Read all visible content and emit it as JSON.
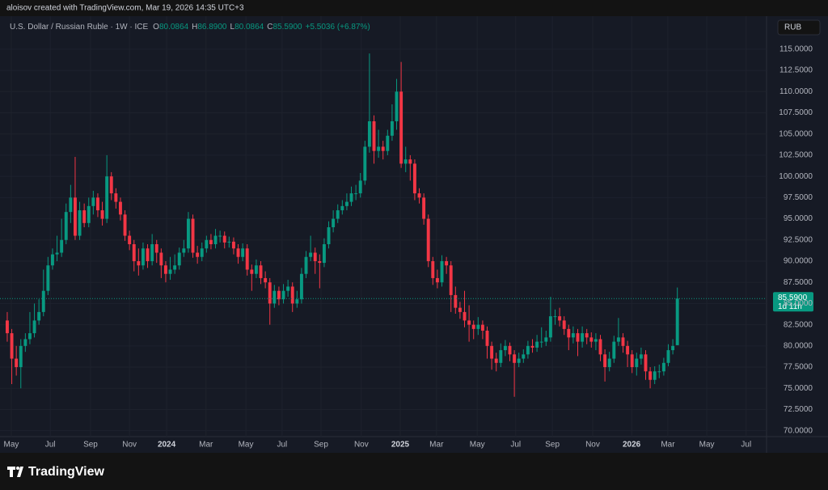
{
  "attribution": "aloisov created with TradingView.com, Mar 19, 2026 14:35 UTC+3",
  "brand": "TradingView",
  "currency_button": "RUB",
  "chart_data": {
    "type": "candlestick",
    "symbol": "U.S. Dollar / Russian Ruble · 1W · ICE",
    "ohlc_labels": [
      "O",
      "H",
      "L",
      "C"
    ],
    "ohlc_values": [
      "80.0864",
      "86.8900",
      "80.0864",
      "85.5900"
    ],
    "change": "+5.5036 (+6.87%)",
    "last_price_label": "85.5900",
    "countdown": "1d 11h",
    "up_color": "#089981",
    "down_color": "#f23645",
    "grid": true,
    "xlim": [
      -1.6,
      167.7
    ],
    "xticks": [
      {
        "value": 0.9,
        "label": "May"
      },
      {
        "value": 9.5,
        "label": "Jul"
      },
      {
        "value": 18.4,
        "label": "Sep"
      },
      {
        "value": 27,
        "label": "Nov"
      },
      {
        "value": 35.2,
        "label": "2024"
      },
      {
        "value": 43.9,
        "label": "Mar"
      },
      {
        "value": 52.7,
        "label": "May"
      },
      {
        "value": 60.7,
        "label": "Jul"
      },
      {
        "value": 69.3,
        "label": "Sep"
      },
      {
        "value": 78.2,
        "label": "Nov"
      },
      {
        "value": 86.8,
        "label": "2025"
      },
      {
        "value": 94.8,
        "label": "Mar"
      },
      {
        "value": 103.8,
        "label": "May"
      },
      {
        "value": 112.3,
        "label": "Jul"
      },
      {
        "value": 120.4,
        "label": "Sep"
      },
      {
        "value": 129.3,
        "label": "Nov"
      },
      {
        "value": 137.9,
        "label": "2026"
      },
      {
        "value": 145.9,
        "label": "Mar"
      },
      {
        "value": 154.5,
        "label": "May"
      },
      {
        "value": 163.2,
        "label": "Jul"
      }
    ],
    "ylim": [
      69.3,
      118.9
    ],
    "yticks": [
      {
        "value": 70,
        "label": "70.0000"
      },
      {
        "value": 72.5,
        "label": "72.5000"
      },
      {
        "value": 75,
        "label": "75.0000"
      },
      {
        "value": 77.5,
        "label": "77.5000"
      },
      {
        "value": 80,
        "label": "80.0000"
      },
      {
        "value": 82.5,
        "label": "82.5000"
      },
      {
        "value": 85,
        "label": "85.0000"
      },
      {
        "value": 87.5,
        "label": "87.5000"
      },
      {
        "value": 90,
        "label": "90.0000"
      },
      {
        "value": 92.5,
        "label": "92.5000"
      },
      {
        "value": 95,
        "label": "95.0000"
      },
      {
        "value": 97.5,
        "label": "97.5000"
      },
      {
        "value": 100,
        "label": "100.0000"
      },
      {
        "value": 102.5,
        "label": "102.5000"
      },
      {
        "value": 105,
        "label": "105.0000"
      },
      {
        "value": 107.5,
        "label": "107.5000"
      },
      {
        "value": 110,
        "label": "110.0000"
      },
      {
        "value": 112.5,
        "label": "112.5000"
      },
      {
        "value": 115,
        "label": "115.0000"
      }
    ],
    "open": [
      83,
      81.5,
      78.5,
      77.5,
      80,
      80.8,
      81.5,
      83,
      84,
      86.5,
      89.5,
      90.8,
      91,
      92.5,
      95.8,
      97.5,
      93,
      96,
      94.5,
      96.5,
      97.5,
      96,
      95,
      100,
      98,
      97,
      95.5,
      93,
      92,
      90,
      89.5,
      91.5,
      90,
      92,
      91,
      89.5,
      88.5,
      89,
      89.5,
      91,
      91.5,
      95,
      91,
      90.5,
      91.5,
      92.5,
      92,
      93,
      93,
      92.2,
      92.3,
      91.5,
      90.5,
      91.5,
      89,
      88.5,
      89.5,
      88,
      87.5,
      85,
      86.5,
      85.5,
      86.5,
      87,
      85,
      85.5,
      88.5,
      90.5,
      91,
      90,
      89.8,
      92,
      94,
      95,
      96,
      96.5,
      97,
      98,
      98,
      99.5,
      103.5,
      106.5,
      103,
      103.5,
      103,
      104.8,
      106.5,
      110,
      101.5,
      102,
      101.5,
      98,
      97.5,
      95,
      90,
      88,
      87.5,
      90,
      89.5,
      86,
      84.5,
      84,
      83,
      82.5,
      82,
      82.5,
      81.8,
      80,
      78.5,
      78,
      79.5,
      80,
      79,
      78,
      78.5,
      79,
      80,
      79.8,
      80.5,
      80.5,
      81,
      83.5,
      83.5,
      83,
      82,
      81,
      81.5,
      80.5,
      81.5,
      81,
      80.5,
      80.8,
      79,
      77.5,
      78.5,
      80.5,
      81,
      80,
      79,
      77.5,
      78.5,
      79,
      77,
      76,
      77,
      77,
      78,
      79.5,
      80.0864
    ],
    "high": [
      84,
      82,
      80,
      80.8,
      81.5,
      84,
      85,
      85.5,
      89,
      90.5,
      91.5,
      93,
      95,
      96.8,
      99,
      102.3,
      97,
      96.8,
      97.5,
      98.3,
      98,
      97,
      102.5,
      100.5,
      98.6,
      97.5,
      96,
      93.6,
      92.5,
      91.5,
      92.2,
      92,
      93.2,
      92.5,
      91.5,
      90,
      90.5,
      90.8,
      91.6,
      92.5,
      95.8,
      95.5,
      91.8,
      92.2,
      93,
      93.2,
      93.8,
      93.6,
      93.5,
      92.9,
      92.8,
      92,
      92.1,
      92,
      89.6,
      90.2,
      90,
      88.8,
      88,
      87.2,
      87,
      87.3,
      87.8,
      87.5,
      86.5,
      89.2,
      91.2,
      93,
      91.6,
      90.8,
      92.7,
      94.7,
      96,
      96.7,
      97.2,
      98,
      98.8,
      99,
      100.4,
      104.2,
      114.5,
      107.2,
      105.5,
      104.2,
      105.5,
      108.5,
      111.5,
      113.5,
      103.5,
      102.5,
      102,
      98.6,
      98,
      95.5,
      90.5,
      89,
      90.7,
      90.5,
      90,
      87,
      85.2,
      86.5,
      84.8,
      83,
      83.4,
      83,
      82.3,
      80.5,
      79.2,
      80.3,
      80.7,
      80.4,
      79.5,
      79.2,
      79.6,
      80.6,
      80.8,
      81.3,
      82.2,
      81.8,
      85.8,
      84.3,
      84.5,
      83.5,
      82.5,
      82.3,
      82,
      82.3,
      82,
      81.6,
      81.5,
      81.3,
      79.6,
      79.3,
      81.2,
      83.3,
      81.5,
      80.6,
      79.5,
      79.2,
      79.8,
      79.5,
      77.5,
      77.6,
      77.8,
      78.6,
      80.2,
      80.8,
      86.89
    ],
    "low": [
      80.5,
      75.5,
      76.5,
      75,
      79.3,
      80.2,
      81,
      82.5,
      83.5,
      86,
      89,
      90,
      90.5,
      92,
      94.5,
      92.5,
      92.5,
      94,
      94,
      95.5,
      95.2,
      94.2,
      94.5,
      97.2,
      96.2,
      94.8,
      92.4,
      91.3,
      88.8,
      88.3,
      89,
      89.2,
      89.5,
      89.8,
      88,
      87.5,
      87.8,
      88.5,
      89,
      90.5,
      91,
      90.4,
      89.7,
      90,
      91,
      91.4,
      91.5,
      92.2,
      91.5,
      91.6,
      90.8,
      89.7,
      90,
      88.3,
      86.5,
      88,
      87.3,
      86.8,
      82.5,
      84.5,
      84.8,
      85,
      85.8,
      84,
      84.5,
      85,
      88,
      90,
      88.5,
      86.8,
      89.3,
      91.5,
      93.4,
      94.5,
      95.5,
      96,
      96.5,
      97.2,
      97.5,
      99,
      102.8,
      101.5,
      102.2,
      102,
      102.5,
      104.2,
      105.5,
      101,
      100.5,
      99.5,
      97.2,
      96.8,
      94.3,
      89.3,
      87.2,
      86.8,
      87,
      88.5,
      84,
      83.8,
      83.2,
      82.2,
      80.5,
      80.8,
      81.3,
      80.8,
      78.5,
      77.2,
      77,
      77.5,
      78.8,
      78.2,
      74,
      77.5,
      78,
      78.5,
      79.2,
      79.3,
      79.8,
      80,
      80.5,
      82.5,
      82.3,
      81.3,
      79.5,
      80.3,
      78.8,
      79.8,
      80.2,
      79.8,
      79.5,
      78.2,
      75.8,
      77,
      78,
      80,
      79.2,
      77.5,
      76.8,
      76.5,
      77.8,
      76,
      75,
      75.5,
      76.2,
      76.5,
      77.6,
      79,
      80.0864
    ],
    "close": [
      81.5,
      78.5,
      77.5,
      80,
      80.8,
      81.5,
      83,
      84,
      86.5,
      89.5,
      90.8,
      91,
      92.5,
      95.8,
      97.5,
      93,
      96,
      94.5,
      96.5,
      97.5,
      96,
      95,
      100,
      98,
      97,
      95.5,
      93,
      92,
      90,
      89.5,
      91.5,
      90,
      92,
      91,
      89.5,
      88.5,
      89,
      89.5,
      91,
      91.5,
      95,
      91,
      90.5,
      91.5,
      92.5,
      92,
      93,
      93,
      92.2,
      92.3,
      91.5,
      90.5,
      91.5,
      89,
      88.5,
      89.5,
      88,
      87.5,
      85,
      86.5,
      85.5,
      86.5,
      87,
      85,
      85.5,
      88.5,
      90.5,
      91,
      90,
      89.8,
      92,
      94,
      95,
      96,
      96.5,
      97,
      98,
      98,
      99.5,
      103.5,
      106.5,
      103,
      103.5,
      103,
      104.8,
      106.5,
      110,
      101.5,
      102,
      101.5,
      98,
      97.5,
      95,
      90,
      88,
      87.5,
      90,
      89.5,
      86,
      84.5,
      84,
      83,
      82.5,
      82,
      82.5,
      81.8,
      80,
      78.5,
      78,
      79.5,
      80,
      79,
      78,
      78.5,
      79,
      80,
      79.8,
      80.5,
      80.5,
      81,
      83.5,
      83.5,
      83,
      82,
      81,
      81.5,
      80.5,
      81.5,
      81,
      80.5,
      80.8,
      79,
      77.5,
      78.5,
      80.5,
      81,
      80,
      79,
      77.5,
      78.5,
      79,
      77,
      76,
      77,
      77,
      78,
      79.5,
      80,
      85.59
    ]
  }
}
